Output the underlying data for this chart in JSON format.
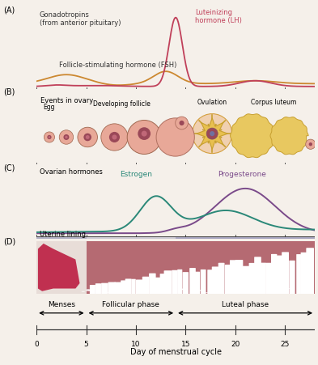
{
  "panel_labels": [
    "(A)",
    "(B)",
    "(C)",
    "(D)"
  ],
  "panel_A_title": "Gonadotropins\n(from anterior pituitary)",
  "panel_A_LH_label": "Luteinizing\nhormone (LH)",
  "panel_A_FSH_label": "Follicle-stimulating hormone (FSH)",
  "panel_B_title": "Events in ovary",
  "panel_B_labels": [
    "Egg",
    "Developing follicle",
    "Ovulation",
    "Corpus luteum"
  ],
  "panel_C_title": "Ovarian hormones",
  "panel_C_estrogen": "Estrogen",
  "panel_C_progesterone": "Progesterone",
  "panel_D_title": "Uterine lining",
  "phases": [
    "Menses",
    "Follicular phase",
    "Luteal phase"
  ],
  "x_label": "Day of menstrual cycle",
  "x_ticks": [
    0,
    5,
    10,
    15,
    20,
    25
  ],
  "x_max": 28,
  "lh_color": "#c0405a",
  "fsh_color": "#cc8830",
  "estrogen_color": "#2a8878",
  "progesterone_color": "#7a4a8a",
  "uterine_color": "#b56a72",
  "follicle_outer": "#e8a898",
  "follicle_inner": "#9a4858",
  "corpus_color": "#e8c860",
  "corpus_edge": "#c8a030",
  "bg_color": "#f5f0ea",
  "line_color": "#333333"
}
